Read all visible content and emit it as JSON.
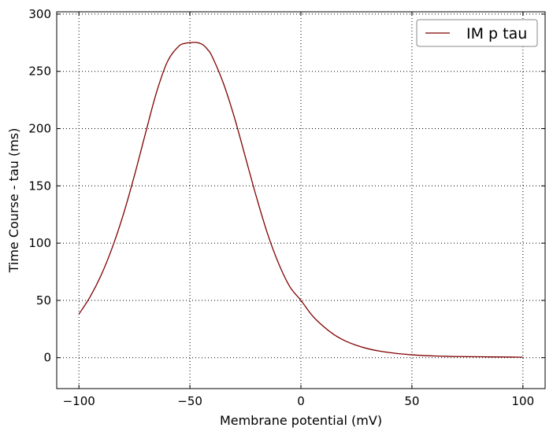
{
  "chart_data": {
    "type": "line",
    "title": "",
    "xlabel": "Membrane potential (mV)",
    "ylabel": "Time Course - tau (ms)",
    "xlim": [
      -110,
      110
    ],
    "ylim": [
      -27,
      302
    ],
    "xticks": [
      -100,
      -50,
      0,
      50,
      100
    ],
    "xtick_labels": [
      "−100",
      "−50",
      "0",
      "50",
      "100"
    ],
    "yticks": [
      0,
      50,
      100,
      150,
      200,
      250,
      300
    ],
    "ytick_labels": [
      "0",
      "50",
      "100",
      "150",
      "200",
      "250",
      "300"
    ],
    "grid": true,
    "legend_position": "top-right",
    "series": [
      {
        "name": "IM p tau",
        "color": "#800000",
        "x": [
          -100,
          -95,
          -90,
          -85,
          -80,
          -75,
          -70,
          -65,
          -60,
          -55,
          -52,
          -50,
          -48,
          -47,
          -46,
          -44,
          -42,
          -40,
          -35,
          -30,
          -25,
          -20,
          -15,
          -10,
          -5,
          0,
          5,
          10,
          15,
          20,
          25,
          30,
          35,
          40,
          45,
          50,
          55,
          60,
          65,
          70,
          75,
          80,
          85,
          90,
          95,
          100
        ],
        "y": [
          38,
          53,
          72,
          96,
          125,
          159,
          196,
          232,
          259,
          272,
          274.5,
          275,
          275.3,
          275.2,
          274.8,
          273,
          269,
          263,
          240,
          210,
          175,
          140,
          108,
          82,
          62,
          50,
          37,
          27.5,
          20,
          14.6,
          10.8,
          7.9,
          5.9,
          4.4,
          3.3,
          2.5,
          1.9,
          1.5,
          1.2,
          1.0,
          0.9,
          0.8,
          0.7,
          0.6,
          0.5,
          0.4
        ]
      }
    ]
  }
}
